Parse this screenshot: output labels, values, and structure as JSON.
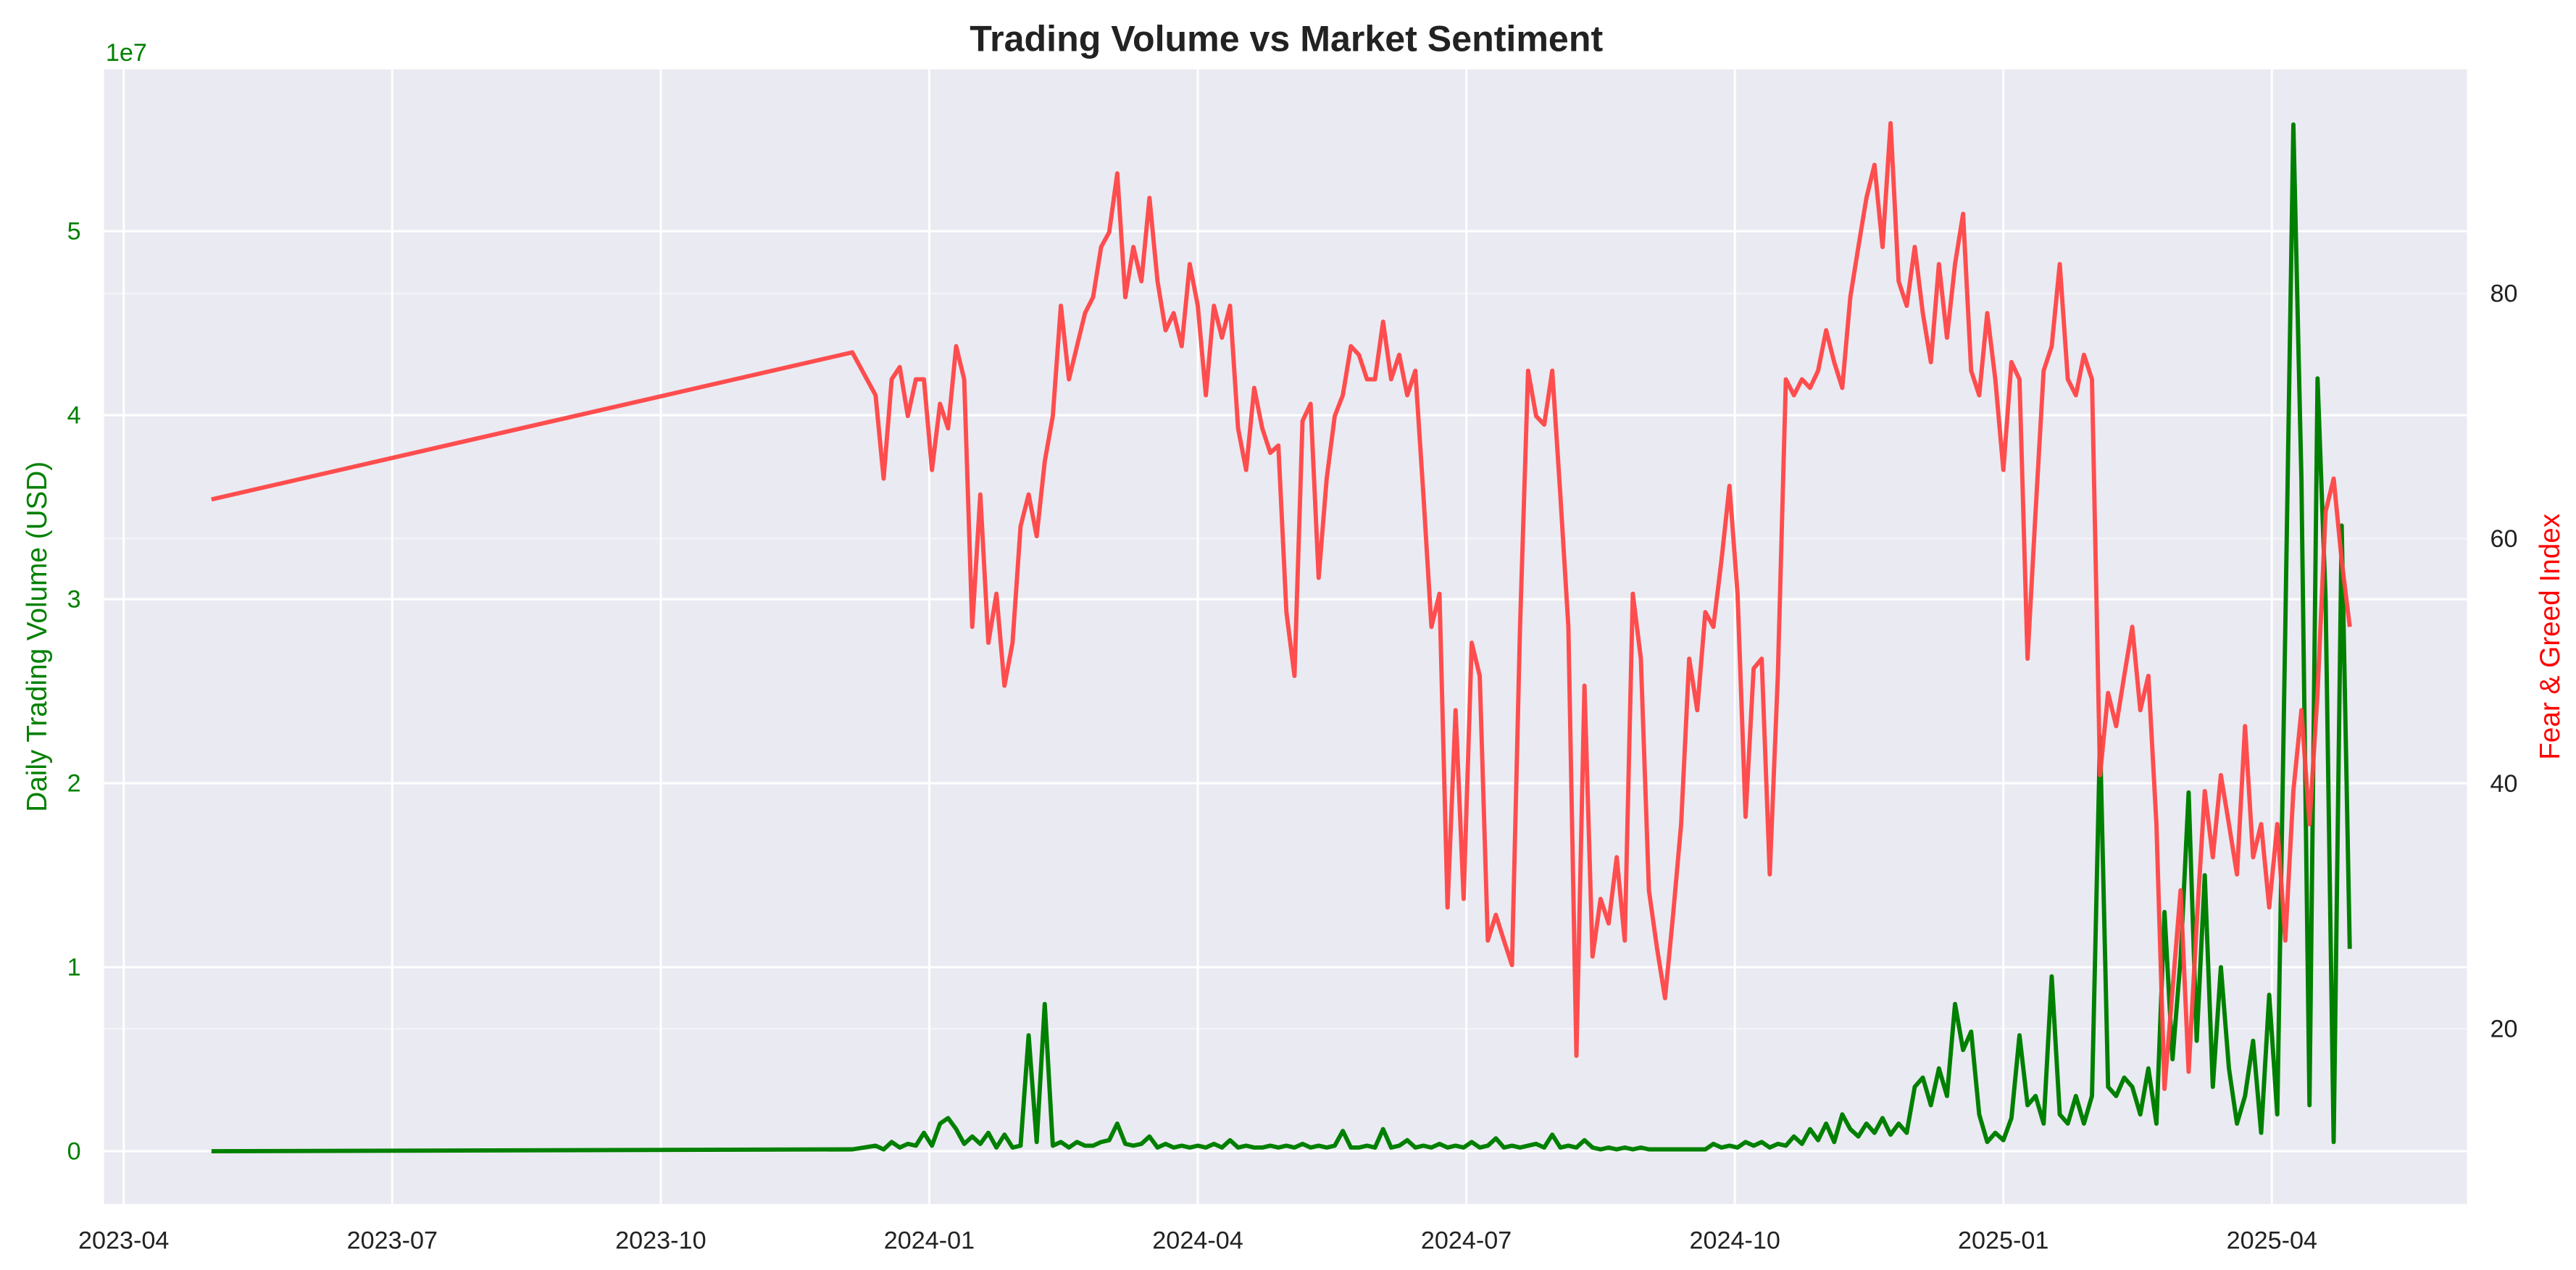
{
  "chart_data": {
    "type": "line",
    "title": "Trading Volume vs Market Sentiment",
    "ylabel": "Daily Trading Volume (USD)",
    "y2label": "Fear & Greed Index",
    "y_offset_label": "1e7",
    "grid": true,
    "x": [
      0.98,
      8.14,
      8.4,
      8.49,
      8.58,
      8.67,
      8.76,
      8.85,
      8.94,
      9.03,
      9.12,
      9.21,
      9.3,
      9.39,
      9.48,
      9.57,
      9.66,
      9.75,
      9.84,
      9.93,
      10.02,
      10.11,
      10.2,
      10.29,
      10.38,
      10.47,
      10.56,
      10.65,
      10.74,
      10.83,
      10.92,
      11.01,
      11.1,
      11.19,
      11.28,
      11.37,
      11.46,
      11.55,
      11.64,
      11.73,
      11.82,
      11.91,
      12,
      12.09,
      12.18,
      12.27,
      12.36,
      12.45,
      12.54,
      12.63,
      12.72,
      12.81,
      12.9,
      12.99,
      13.08,
      13.17,
      13.26,
      13.35,
      13.44,
      13.53,
      13.62,
      13.71,
      13.8,
      13.89,
      13.98,
      14.07,
      14.16,
      14.25,
      14.34,
      14.43,
      14.52,
      14.61,
      14.7,
      14.79,
      14.88,
      14.97,
      15.06,
      15.15,
      15.24,
      15.33,
      15.42,
      15.51,
      15.6,
      15.69,
      15.78,
      15.87,
      15.96,
      16.05,
      16.14,
      16.23,
      16.32,
      16.41,
      16.5,
      16.59,
      16.68,
      16.77,
      16.86,
      16.95,
      17.04,
      17.13,
      17.22,
      17.31,
      17.4,
      17.49,
      17.58,
      17.67,
      17.76,
      17.85,
      17.94,
      18.03,
      18.12,
      18.21,
      18.3,
      18.39,
      18.48,
      18.57,
      18.66,
      18.75,
      18.84,
      18.93,
      19.02,
      19.11,
      19.2,
      19.29,
      19.38,
      19.47,
      19.56,
      19.65,
      19.74,
      19.83,
      19.92,
      20.01,
      20.1,
      20.19,
      20.28,
      20.37,
      20.46,
      20.55,
      20.64,
      20.73,
      20.82,
      20.91,
      21,
      21.09,
      21.18,
      21.27,
      21.36,
      21.45,
      21.54,
      21.63,
      21.72,
      21.81,
      21.9,
      21.99,
      22.08,
      22.17,
      22.26,
      22.35,
      22.44,
      22.53,
      22.62,
      22.71,
      22.8,
      22.89,
      22.98,
      23.07,
      23.16,
      23.25,
      23.34,
      23.43,
      23.52,
      23.61,
      23.7,
      23.79,
      23.88,
      23.97,
      24.06,
      24.15,
      24.24,
      24.33,
      24.42,
      24.51,
      24.6,
      24.69,
      24.78,
      24.87
    ],
    "xlim": [
      -0.22,
      26.18
    ],
    "xticks": [
      {
        "value": 0,
        "label": "2023-04"
      },
      {
        "value": 3,
        "label": "2023-07"
      },
      {
        "value": 6,
        "label": "2023-10"
      },
      {
        "value": 9,
        "label": "2024-01"
      },
      {
        "value": 12,
        "label": "2024-04"
      },
      {
        "value": 15,
        "label": "2024-07"
      },
      {
        "value": 18,
        "label": "2024-10"
      },
      {
        "value": 21,
        "label": "2025-01"
      },
      {
        "value": 24,
        "label": "2025-04"
      }
    ],
    "ylim": [
      -2870000,
      58800000
    ],
    "yticks": [
      0,
      {
        "value": 10000000,
        "label": "1"
      },
      {
        "value": 20000000,
        "label": "2"
      },
      {
        "value": 30000000,
        "label": "3"
      },
      {
        "value": 40000000,
        "label": "4"
      },
      {
        "value": 50000000,
        "label": "5"
      }
    ],
    "y2lim": [
      5.7,
      98.3
    ],
    "y2ticks": [
      20,
      40,
      60,
      80
    ],
    "series": [
      {
        "name": "Daily Trading Volume (USD)",
        "color": "#008000",
        "axis": "y",
        "values": [
          0,
          100000,
          300000,
          100000,
          500000,
          200000,
          400000,
          300000,
          1000000,
          300000,
          1500000,
          1800000,
          1200000,
          400000,
          800000,
          400000,
          1000000,
          200000,
          900000,
          200000,
          300000,
          6300000,
          500000,
          8000000,
          300000,
          500000,
          200000,
          500000,
          300000,
          300000,
          500000,
          600000,
          1500000,
          400000,
          300000,
          400000,
          800000,
          200000,
          400000,
          200000,
          300000,
          200000,
          300000,
          200000,
          400000,
          200000,
          600000,
          200000,
          300000,
          200000,
          200000,
          300000,
          200000,
          300000,
          200000,
          400000,
          200000,
          300000,
          200000,
          300000,
          1100000,
          200000,
          200000,
          300000,
          200000,
          1200000,
          200000,
          300000,
          600000,
          200000,
          300000,
          200000,
          400000,
          200000,
          300000,
          200000,
          500000,
          200000,
          300000,
          700000,
          200000,
          300000,
          200000,
          300000,
          400000,
          200000,
          900000,
          200000,
          300000,
          200000,
          600000,
          200000,
          100000,
          200000,
          100000,
          200000,
          100000,
          200000,
          100000,
          100000,
          100000,
          100000,
          100000,
          100000,
          100000,
          100000,
          400000,
          200000,
          300000,
          200000,
          500000,
          300000,
          500000,
          200000,
          400000,
          300000,
          800000,
          400000,
          1200000,
          600000,
          1500000,
          500000,
          2000000,
          1200000,
          800000,
          1500000,
          1000000,
          1800000,
          900000,
          1500000,
          1000000,
          3500000,
          4000000,
          2500000,
          4500000,
          3000000,
          8000000,
          5500000,
          6500000,
          2000000,
          500000,
          1000000,
          600000,
          1800000,
          6300000,
          2500000,
          3000000,
          1500000,
          9500000,
          2000000,
          1500000,
          3000000,
          1500000,
          3000000,
          22500000,
          3500000,
          3000000,
          4000000,
          3500000,
          2000000,
          4500000,
          1500000,
          13000000,
          5000000,
          10500000,
          19500000,
          6000000,
          15000000,
          3500000,
          10000000,
          4500000,
          1500000,
          3000000,
          6000000,
          1000000,
          8500000,
          2000000,
          28500000,
          55800000,
          36500000,
          2500000,
          42000000,
          30000000,
          500000,
          34000000,
          11000000
        ]
      },
      {
        "name": "Fear & Greed Index",
        "color": "#ff4444",
        "axis": "y2",
        "values": [
          63.2,
          75.2,
          71.7,
          64.9,
          73,
          74,
          70,
          73,
          73,
          65.6,
          71,
          69,
          75.7,
          73,
          52.8,
          63.6,
          51.5,
          55.5,
          48,
          51.5,
          61,
          63.6,
          60.2,
          66.3,
          70,
          79,
          73,
          75.7,
          78.4,
          79.7,
          83.8,
          85,
          89.8,
          79.7,
          83.8,
          81,
          87.8,
          81,
          77,
          78.4,
          75.7,
          82.4,
          79,
          71.7,
          79,
          76.4,
          79,
          69,
          65.6,
          72.3,
          69,
          67,
          67.6,
          54,
          48.8,
          69.6,
          71,
          56.8,
          64.9,
          70,
          71.7,
          75.7,
          75,
          73,
          73,
          77.7,
          73,
          75,
          71.7,
          73.7,
          63.6,
          52.8,
          55.5,
          29.9,
          46,
          30.6,
          51.5,
          48.8,
          27.2,
          29.3,
          27.2,
          25.2,
          52.8,
          73.7,
          70,
          69.3,
          73.7,
          63.6,
          52.8,
          17.8,
          48,
          25.9,
          30.6,
          28.6,
          34,
          27.2,
          55.5,
          50.2,
          31.3,
          26.6,
          22.5,
          29.3,
          36.7,
          50.2,
          46,
          54,
          52.8,
          58.2,
          64.3,
          55.5,
          37.3,
          49.4,
          50.2,
          32.6,
          48.8,
          73,
          71.7,
          73,
          72.3,
          73.7,
          77,
          74.4,
          72.3,
          79.7,
          83.8,
          87.8,
          90.5,
          83.8,
          93.9,
          81,
          79,
          83.8,
          78.4,
          74.4,
          82.4,
          76.4,
          82.4,
          86.5,
          73.7,
          71.7,
          78.4,
          73,
          65.6,
          74.4,
          73,
          50.2,
          62.2,
          73.7,
          75.7,
          82.4,
          73,
          71.7,
          75,
          73,
          40.7,
          47.4,
          44.7,
          48.8,
          52.8,
          46,
          48.8,
          36.7,
          15.1,
          23.2,
          31.3,
          16.5,
          28.6,
          39.4,
          34,
          40.7,
          36.7,
          32.6,
          44.7,
          34,
          36.7,
          29.9,
          36.7,
          27.2,
          39.4,
          46,
          36.7,
          47.4,
          62.2,
          64.9,
          58.2,
          52.8
        ]
      }
    ]
  }
}
